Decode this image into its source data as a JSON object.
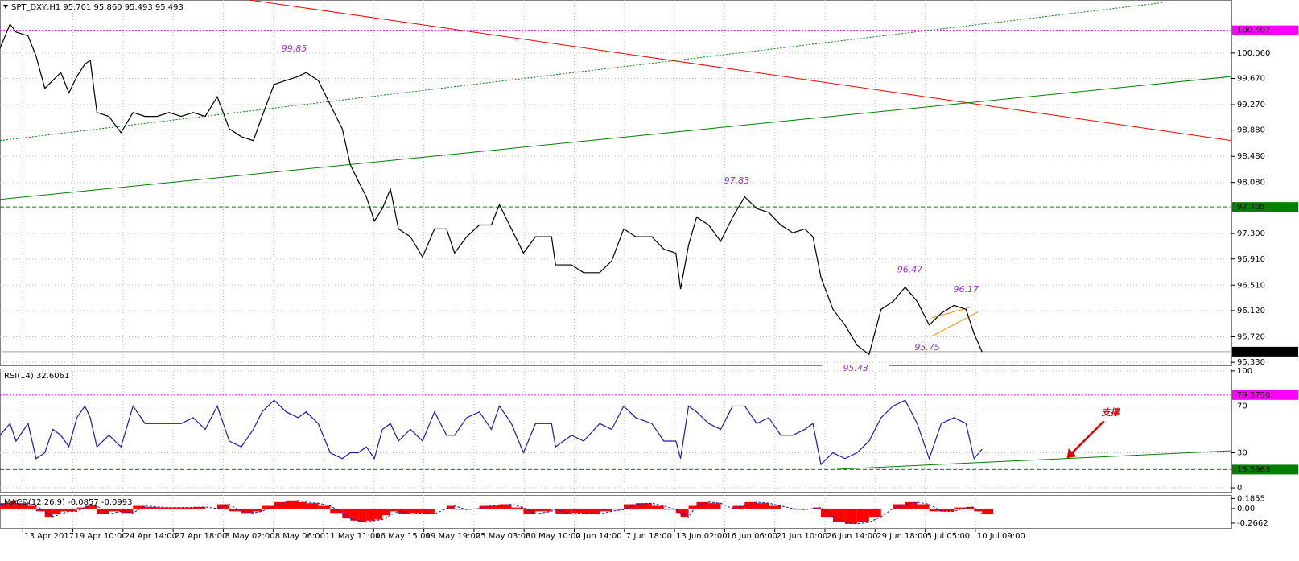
{
  "chart_data": [
    {
      "type": "line",
      "title": "SPT_DXY,H1  95.701 95.860 95.493 95.493",
      "color": "#000000",
      "x": [
        -34,
        -19,
        -10,
        8,
        20,
        33,
        45,
        57,
        69,
        81,
        93,
        101,
        111,
        129,
        147,
        165,
        183,
        201,
        219,
        237,
        255,
        273,
        291,
        309,
        327,
        345,
        358,
        376,
        394,
        412,
        424,
        442,
        460,
        478,
        490,
        502,
        514,
        526,
        538,
        550,
        562,
        580,
        598,
        616,
        634,
        646,
        664,
        683,
        701,
        713,
        731,
        749,
        767,
        791,
        797,
        821,
        839,
        863,
        881,
        899,
        917,
        941,
        959,
        977,
        984,
        996,
        1008,
        1026,
        1044,
        1062,
        1080,
        1098,
        1116,
        1134,
        1152,
        1170,
        1182,
        1194,
        1212,
        1230,
        1248,
        1266,
        1284,
        1302,
        1320,
        1338,
        1356,
        1374,
        1393,
        1411,
        1423,
        1435
      ],
      "values": [
        100.13,
        100.5,
        100.38,
        100.32,
        100.01,
        99.52,
        99.64,
        99.76,
        99.45,
        99.7,
        99.89,
        99.95,
        99.15,
        99.09,
        98.84,
        99.15,
        99.09,
        99.09,
        99.15,
        99.09,
        99.15,
        99.09,
        99.39,
        98.9,
        98.78,
        98.72,
        99.09,
        99.58,
        99.64,
        99.7,
        99.76,
        99.64,
        99.27,
        98.9,
        98.35,
        98.1,
        97.86,
        97.49,
        97.68,
        97.98,
        97.37,
        97.25,
        96.94,
        97.37,
        97.37,
        97.0,
        97.25,
        97.43,
        97.43,
        97.74,
        97.37,
        97.0,
        97.25,
        97.25,
        96.82,
        96.82,
        96.7,
        96.7,
        96.88,
        97.37,
        97.25,
        97.25,
        97.06,
        97.0,
        96.45,
        97.12,
        97.55,
        97.43,
        97.18,
        97.55,
        97.86,
        97.68,
        97.62,
        97.43,
        97.31,
        97.37,
        97.25,
        96.63,
        96.14,
        95.9,
        95.59,
        95.45,
        96.14,
        96.26,
        96.48,
        96.26,
        95.9,
        96.08,
        96.2,
        96.14,
        95.77,
        95.49
      ],
      "xlim": [
        -34,
        1808
      ],
      "ylim": [
        95.27,
        100.87
      ],
      "grid": true,
      "yticks": [
        {
          "value": 100.06,
          "label": "100.060"
        },
        {
          "value": 99.67,
          "label": "99.670"
        },
        {
          "value": 99.27,
          "label": "99.270"
        },
        {
          "value": 98.88,
          "label": "98.880"
        },
        {
          "value": 98.48,
          "label": "98.480"
        },
        {
          "value": 98.08,
          "label": "98.080"
        },
        {
          "value": 97.3,
          "label": "97.300"
        },
        {
          "value": 96.91,
          "label": "96.910"
        },
        {
          "value": 96.51,
          "label": "96.510"
        },
        {
          "value": 96.12,
          "label": "96.120"
        },
        {
          "value": 95.72,
          "label": "95.720"
        },
        {
          "value": 95.33,
          "label": "95.330"
        }
      ],
      "levels": [
        {
          "value": 100.407,
          "color": "#ff00ff",
          "style": "dotted",
          "text_color": "#ffffff"
        },
        {
          "value": 97.705,
          "color": "#008000",
          "style": "dashed",
          "text_color": "#000000"
        },
        {
          "value": 95.493,
          "color": "#000000",
          "style": "solid",
          "text_color": "#ffffff"
        }
      ],
      "lines": [
        {
          "x": [
            339,
            1808
          ],
          "y": [
            100.87,
            98.72
          ],
          "color": "#ff0000",
          "style": "solid"
        },
        {
          "x": [
            -34,
            1808
          ],
          "y": [
            97.82,
            99.7
          ],
          "color": "#008000",
          "style": "solid"
        },
        {
          "x": [
            -34,
            1706
          ],
          "y": [
            98.72,
            100.83
          ],
          "color": "#008000",
          "style": "dotted"
        },
        {
          "x": [
            1360,
            1417
          ],
          "y": [
            96.01,
            96.17
          ],
          "color": "#ff8c00",
          "style": "solid"
        },
        {
          "x": [
            1360,
            1429
          ],
          "y": [
            95.73,
            96.1
          ],
          "color": "#ff8c00",
          "style": "solid"
        }
      ],
      "annotations": [
        {
          "x": 406,
          "y": 99.85,
          "position": "above"
        },
        {
          "x": 1068,
          "y": 97.83,
          "position": "above"
        },
        {
          "x": 1327,
          "y": 96.47,
          "position": "above"
        },
        {
          "x": 1411,
          "y": 96.17,
          "position": "above"
        },
        {
          "x": 1353,
          "y": 95.75,
          "position": "below"
        },
        {
          "x": 1246,
          "y": 95.43,
          "position": "below"
        }
      ]
    },
    {
      "type": "line",
      "title": "RSI(14) 32.6061",
      "color": "#1a1ab8",
      "x": [
        -34,
        -19,
        -10,
        8,
        20,
        33,
        45,
        57,
        69,
        81,
        93,
        101,
        111,
        129,
        147,
        165,
        183,
        201,
        219,
        237,
        255,
        273,
        291,
        309,
        327,
        345,
        358,
        376,
        394,
        412,
        424,
        442,
        460,
        478,
        490,
        502,
        514,
        526,
        538,
        550,
        562,
        580,
        598,
        616,
        634,
        646,
        664,
        683,
        701,
        713,
        731,
        749,
        767,
        791,
        797,
        821,
        839,
        863,
        881,
        899,
        917,
        941,
        959,
        977,
        984,
        996,
        1008,
        1026,
        1044,
        1062,
        1080,
        1098,
        1116,
        1134,
        1152,
        1170,
        1182,
        1194,
        1212,
        1230,
        1248,
        1266,
        1284,
        1302,
        1320,
        1338,
        1356,
        1374,
        1393,
        1411,
        1423,
        1435
      ],
      "values": [
        45,
        55,
        40,
        55,
        25,
        30,
        50,
        45,
        35,
        60,
        70,
        60,
        35,
        45,
        35,
        70,
        55,
        55,
        55,
        55,
        60,
        50,
        70,
        40,
        35,
        50,
        65,
        75,
        65,
        60,
        65,
        55,
        30,
        25,
        30,
        30,
        35,
        25,
        50,
        55,
        40,
        50,
        40,
        65,
        45,
        45,
        60,
        65,
        50,
        70,
        55,
        30,
        55,
        55,
        35,
        45,
        40,
        55,
        50,
        70,
        60,
        55,
        40,
        40,
        25,
        70,
        65,
        55,
        50,
        70,
        70,
        55,
        60,
        45,
        45,
        50,
        55,
        20,
        30,
        25,
        30,
        40,
        60,
        70,
        75,
        55,
        25,
        55,
        60,
        55,
        25,
        33
      ],
      "xlim": [
        -34,
        1808
      ],
      "ylim": [
        -4.1,
        102
      ],
      "grid": true,
      "yticks": [
        100,
        70,
        30,
        0
      ],
      "levels": [
        {
          "value": 79.375,
          "label": "79.3750",
          "color": "#ff00ff",
          "style": "dotted",
          "text_color": "#ffffff"
        },
        {
          "value": 15.5963,
          "color": "#008000",
          "style": "dashed",
          "text_color": "#000000"
        }
      ],
      "lines": [
        {
          "x": [
            1218,
            1808
          ],
          "y": [
            15.9,
            31.7
          ],
          "color": "#008000",
          "style": "solid"
        }
      ],
      "annotations": [
        {
          "x": 1627,
          "y": 64,
          "text": "支撑",
          "arrow": true
        }
      ]
    },
    {
      "type": "bar",
      "title": "MACD(12,26,9) -0.0857 -0.0993",
      "color": "#ff0000",
      "x": [
        -34,
        -19,
        -10,
        8,
        20,
        33,
        45,
        57,
        69,
        81,
        93,
        101,
        111,
        129,
        147,
        165,
        183,
        201,
        219,
        237,
        255,
        273,
        291,
        309,
        327,
        345,
        358,
        376,
        394,
        412,
        424,
        442,
        460,
        478,
        490,
        502,
        514,
        526,
        538,
        550,
        562,
        580,
        598,
        616,
        634,
        646,
        664,
        683,
        701,
        713,
        731,
        749,
        767,
        791,
        797,
        821,
        839,
        863,
        881,
        899,
        917,
        941,
        959,
        977,
        984,
        996,
        1008,
        1026,
        1044,
        1062,
        1080,
        1098,
        1116,
        1134,
        1152,
        1170,
        1182,
        1194,
        1212,
        1230,
        1248,
        1266,
        1284,
        1302,
        1320,
        1338,
        1356,
        1374,
        1393,
        1411,
        1423,
        1435
      ],
      "values": [
        0.1,
        0.15,
        0.1,
        0.05,
        -0.05,
        -0.15,
        -0.1,
        -0.05,
        -0.05,
        0.02,
        0.05,
        0.05,
        -0.1,
        -0.05,
        -0.08,
        0.05,
        0.03,
        0.02,
        0.02,
        0.02,
        0.03,
        0.0,
        0.08,
        -0.05,
        -0.08,
        -0.05,
        0.05,
        0.12,
        0.15,
        0.12,
        0.1,
        0.05,
        -0.08,
        -0.18,
        -0.22,
        -0.25,
        -0.22,
        -0.2,
        -0.12,
        -0.05,
        -0.1,
        -0.08,
        -0.1,
        0.0,
        0.05,
        -0.02,
        0.0,
        0.05,
        0.05,
        0.08,
        0.02,
        -0.1,
        -0.05,
        -0.02,
        -0.1,
        -0.08,
        -0.1,
        -0.05,
        -0.02,
        0.08,
        0.1,
        0.05,
        -0.02,
        -0.08,
        -0.15,
        0.05,
        0.12,
        0.1,
        0.0,
        0.05,
        0.12,
        0.1,
        0.05,
        0.0,
        -0.02,
        0.0,
        0.02,
        -0.15,
        -0.25,
        -0.28,
        -0.25,
        -0.15,
        0.0,
        0.08,
        0.12,
        0.08,
        -0.05,
        -0.05,
        0.02,
        0.03,
        -0.05,
        -0.09
      ],
      "signal": {
        "color": "#1a1ab8",
        "values": [
          0.08,
          0.1,
          0.15,
          0.1,
          0.05,
          -0.05,
          -0.15,
          -0.1,
          -0.05,
          -0.05,
          0.02,
          0.05,
          0.05,
          -0.1,
          -0.05,
          -0.08,
          0.05,
          0.03,
          0.02,
          0.02,
          0.02,
          0.03,
          0.0,
          0.08,
          -0.05,
          -0.08,
          -0.05,
          0.05,
          0.12,
          0.15,
          0.12,
          0.1,
          0.05,
          -0.08,
          -0.18,
          -0.22,
          -0.25,
          -0.22,
          -0.2,
          -0.12,
          -0.05,
          -0.1,
          -0.08,
          -0.1,
          0.0,
          0.05,
          -0.02,
          0.0,
          0.05,
          0.05,
          0.08,
          0.02,
          -0.1,
          -0.05,
          -0.02,
          -0.1,
          -0.08,
          -0.1,
          -0.05,
          -0.02,
          0.08,
          0.1,
          0.05,
          -0.02,
          -0.08,
          -0.15,
          0.05,
          0.12,
          0.1,
          0.0,
          0.05,
          0.12,
          0.1,
          0.05,
          0.0,
          -0.02,
          0.0,
          0.02,
          -0.15,
          -0.25,
          -0.28,
          -0.25,
          -0.15,
          0.0,
          0.08,
          0.12,
          0.08,
          -0.05,
          -0.05,
          0.02,
          0.03,
          -0.1
        ]
      },
      "xlim": [
        -34,
        1808
      ],
      "ylim": [
        -0.37,
        0.25
      ],
      "grid": false,
      "yticks": [
        0.1855,
        {
          "value": 0,
          "label": "0.00"
        },
        -0.2662
      ],
      "xticks": [
        {
          "value": 0,
          "label": "13 Apr 2017"
        },
        {
          "value": 75,
          "label": "19 Apr 10:00"
        },
        {
          "value": 150,
          "label": "24 Apr 14:00"
        },
        {
          "value": 225,
          "label": "27 Apr 18:00"
        },
        {
          "value": 300,
          "label": "3 May 02:00"
        },
        {
          "value": 375,
          "label": "8 May 06:00"
        },
        {
          "value": 450,
          "label": "11 May 11:00"
        },
        {
          "value": 525,
          "label": "16 May 15:00"
        },
        {
          "value": 600,
          "label": "19 May 19:00"
        },
        {
          "value": 675,
          "label": "25 May 03:00"
        },
        {
          "value": 750,
          "label": "30 May 10:00"
        },
        {
          "value": 825,
          "label": "2 Jun 14:00"
        },
        {
          "value": 900,
          "label": "7 Jun 18:00"
        },
        {
          "value": 975,
          "label": "13 Jun 02:00"
        },
        {
          "value": 1050,
          "label": "16 Jun 06:00"
        },
        {
          "value": 1125,
          "label": "21 Jun 10:00"
        },
        {
          "value": 1200,
          "label": "26 Jun 14:00"
        },
        {
          "value": 1275,
          "label": "29 Jun 18:00"
        },
        {
          "value": 1350,
          "label": "5 Jul 05:00"
        },
        {
          "value": 1425,
          "label": "10 Jul 09:00"
        }
      ]
    }
  ]
}
